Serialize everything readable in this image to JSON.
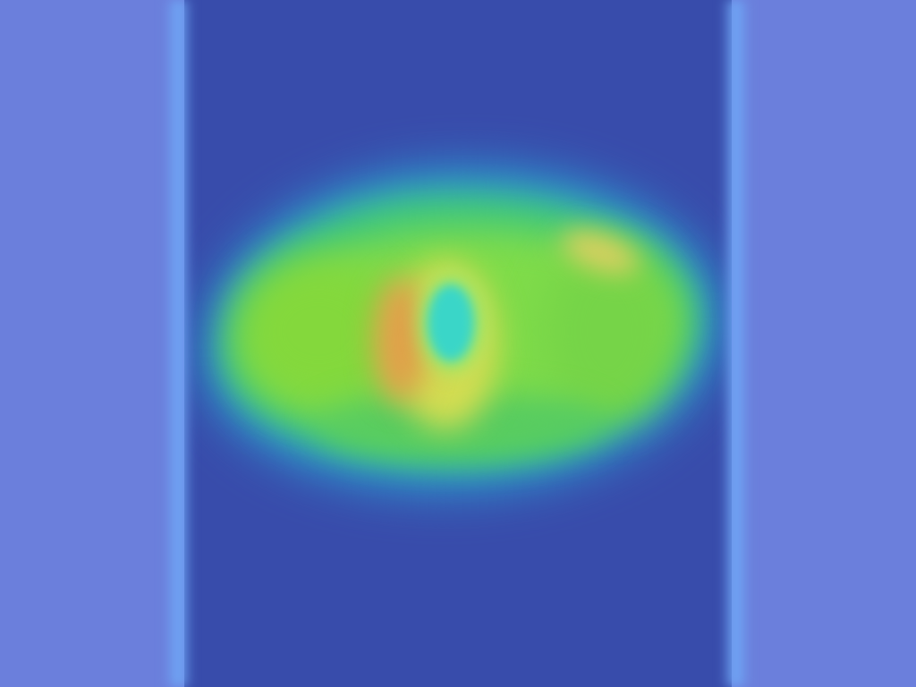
{
  "scene": {
    "description_tag": "",
    "colors": {
      "outer_background": "#6b7fdc",
      "image_background": "#384cab",
      "edge_glow": "#6fa6f5",
      "halo": "#2a9ad0",
      "body_green": "#3fc87a",
      "lime": "#7fdc4a",
      "hot_orange": "#e0a04a",
      "warm_yellow": "#d2dc52",
      "cyan_center": "#3ad6c8"
    }
  }
}
